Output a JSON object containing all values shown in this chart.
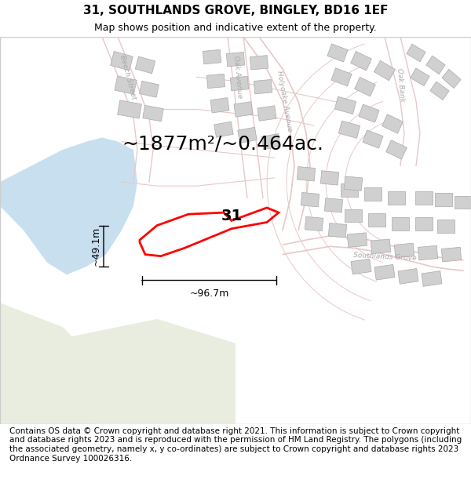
{
  "title": "31, SOUTHLANDS GROVE, BINGLEY, BD16 1EF",
  "subtitle": "Map shows position and indicative extent of the property.",
  "area_label": "~1877m²/~0.464ac.",
  "label_31": "31",
  "dim_height": "~49.1m",
  "dim_width": "~96.7m",
  "footer": "Contains OS data © Crown copyright and database right 2021. This information is subject to Crown copyright and database rights 2023 and is reproduced with the permission of HM Land Registry. The polygons (including the associated geometry, namely x, y co-ordinates) are subject to Crown copyright and database rights 2023 Ordnance Survey 100026316.",
  "bg_color": "#f0f0e8",
  "map_bg": "#f5f5ef",
  "river_color": "#c8dff0",
  "road_color": "#e8c8c8",
  "building_color": "#d0d0d0",
  "plot_color": "#ff0000",
  "title_fontsize": 11,
  "subtitle_fontsize": 9,
  "area_label_fontsize": 18,
  "footer_fontsize": 7.5
}
